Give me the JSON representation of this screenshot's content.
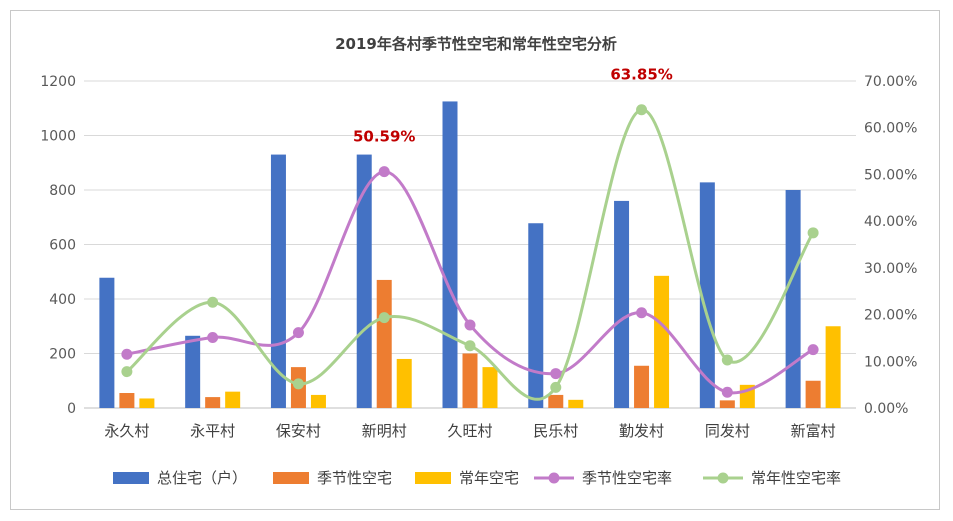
{
  "chart_data": {
    "type": "bar",
    "title": "2019年各村季节性空宅和常年性空宅分析",
    "categories": [
      "永久村",
      "永平村",
      "保安村",
      "新明村",
      "久旺村",
      "民乐村",
      "勤发村",
      "同发村",
      "新富村"
    ],
    "ylim": [
      0,
      1200
    ],
    "y_ticks": [
      "0",
      "200",
      "400",
      "600",
      "800",
      "1000",
      "1200"
    ],
    "y2lim": [
      0,
      0.7
    ],
    "y2_ticks": [
      "0.00%",
      "10.00%",
      "20.00%",
      "30.00%",
      "40.00%",
      "50.00%",
      "60.00%",
      "70.00%"
    ],
    "grid": true,
    "legend_position": "bottom",
    "series": [
      {
        "name": "总住宅（户）",
        "type": "bar",
        "axis": "left",
        "color": "#4472C4",
        "values": [
          478,
          265,
          930,
          930,
          1125,
          678,
          760,
          828,
          800
        ]
      },
      {
        "name": "季节性空宅",
        "type": "bar",
        "axis": "left",
        "color": "#ED7D31",
        "values": [
          55,
          40,
          150,
          470,
          200,
          48,
          155,
          28,
          100
        ]
      },
      {
        "name": "常年空宅",
        "type": "bar",
        "axis": "left",
        "color": "#FFC000",
        "values": [
          35,
          60,
          48,
          180,
          150,
          30,
          485,
          85,
          300
        ]
      },
      {
        "name": "季节性空宅率",
        "type": "line",
        "axis": "right",
        "color": "#C27BC9",
        "values": [
          0.1151,
          0.1509,
          0.1613,
          0.5059,
          0.1778,
          0.0737,
          0.2039,
          0.0338,
          0.125
        ]
      },
      {
        "name": "常年性空宅率",
        "type": "line",
        "axis": "right",
        "color": "#A9D18E",
        "values": [
          0.0778,
          0.2264,
          0.0516,
          0.1935,
          0.1333,
          0.0442,
          0.6385,
          0.1027,
          0.375
        ]
      }
    ],
    "annotations": [
      {
        "text": "50.59%",
        "series": 3,
        "index": 3
      },
      {
        "text": "63.85%",
        "series": 4,
        "index": 6
      }
    ]
  }
}
